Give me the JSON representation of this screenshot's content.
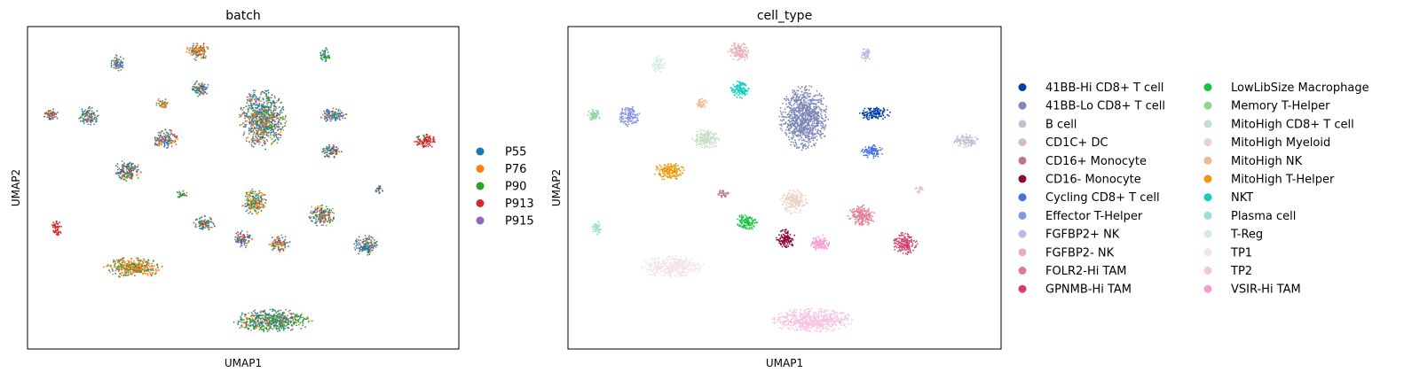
{
  "chart_data": [
    {
      "type": "scatter",
      "title": "batch",
      "xlabel": "UMAP1",
      "ylabel": "UMAP2",
      "grid": false,
      "ticks": false,
      "legend_position": "right",
      "series": [
        {
          "name": "P55",
          "color": "#1f77b4"
        },
        {
          "name": "P76",
          "color": "#ff7f0e"
        },
        {
          "name": "P90",
          "color": "#2ca02c"
        },
        {
          "name": "P913",
          "color": "#d62728"
        },
        {
          "name": "P915",
          "color": "#9467bd"
        }
      ]
    },
    {
      "type": "scatter",
      "title": "cell_type",
      "xlabel": "UMAP1",
      "ylabel": "UMAP2",
      "grid": false,
      "ticks": false,
      "legend_position": "right",
      "legend_columns": 2,
      "series": [
        {
          "name": "41BB-Hi CD8+ T cell",
          "color": "#023fa5"
        },
        {
          "name": "41BB-Lo CD8+ T cell",
          "color": "#7d87b9"
        },
        {
          "name": "B cell",
          "color": "#bec1d4"
        },
        {
          "name": "CD1C+ DC",
          "color": "#d6bcc0"
        },
        {
          "name": "CD16+ Monocyte",
          "color": "#bb7784"
        },
        {
          "name": "CD16- Monocyte",
          "color": "#8e063b"
        },
        {
          "name": "Cycling CD8+ T cell",
          "color": "#4a6fe3"
        },
        {
          "name": "Effector T-Helper",
          "color": "#8595e1"
        },
        {
          "name": "FGFBP2+ NK",
          "color": "#b5bbe3"
        },
        {
          "name": "FGFBP2- NK",
          "color": "#e6afb9"
        },
        {
          "name": "FOLR2-Hi TAM",
          "color": "#e07b91"
        },
        {
          "name": "GPNMB-Hi TAM",
          "color": "#d33f6a"
        },
        {
          "name": "LowLibSize Macrophage",
          "color": "#11c638"
        },
        {
          "name": "Memory T-Helper",
          "color": "#8dd593"
        },
        {
          "name": "MitoHigh CD8+ T cell",
          "color": "#c6dec7"
        },
        {
          "name": "MitoHigh Myeloid",
          "color": "#ead3c6"
        },
        {
          "name": "MitoHigh NK",
          "color": "#f0b98d"
        },
        {
          "name": "MitoHigh T-Helper",
          "color": "#ef9708"
        },
        {
          "name": "NKT",
          "color": "#0fcfc0"
        },
        {
          "name": "Plasma cell",
          "color": "#9cded6"
        },
        {
          "name": "T-Reg",
          "color": "#d5eae7"
        },
        {
          "name": "TP1",
          "color": "#f3e1eb"
        },
        {
          "name": "TP2",
          "color": "#f6c4e1"
        },
        {
          "name": "VSIR-Hi TAM",
          "color": "#f79cd4"
        }
      ]
    }
  ]
}
